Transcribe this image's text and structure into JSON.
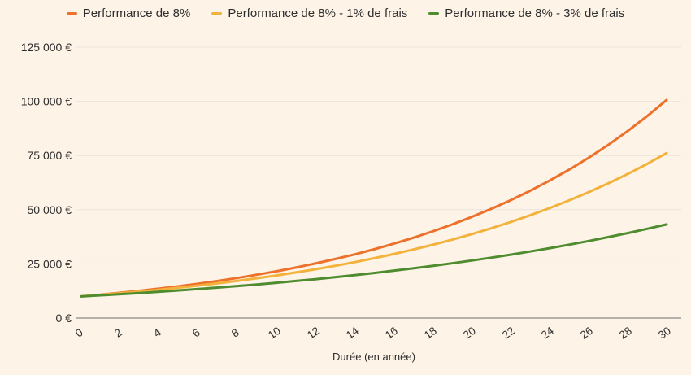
{
  "page": {
    "background": "#FDF3E6"
  },
  "colors": {
    "background": "#FDF3E6",
    "grid": "#ECE5DA",
    "axis": "#9B9B98",
    "text": "#2E2E2E"
  },
  "chart_data": {
    "type": "line",
    "title": "",
    "xlabel": "Durée (en année)",
    "ylabel": "",
    "xlim": [
      0,
      30
    ],
    "ylim": [
      0,
      125000
    ],
    "grid": "horizontal",
    "legend_position": "top",
    "x": [
      0,
      1,
      2,
      3,
      4,
      5,
      6,
      7,
      8,
      9,
      10,
      11,
      12,
      13,
      14,
      15,
      16,
      17,
      18,
      19,
      20,
      21,
      22,
      23,
      24,
      25,
      26,
      27,
      28,
      29,
      30
    ],
    "x_tick_values": [
      0,
      2,
      4,
      6,
      8,
      10,
      12,
      14,
      16,
      18,
      20,
      22,
      24,
      26,
      28,
      30
    ],
    "x_tick_labels": [
      "0",
      "2",
      "4",
      "6",
      "8",
      "10",
      "12",
      "14",
      "16",
      "18",
      "20",
      "22",
      "24",
      "26",
      "28",
      "30"
    ],
    "y_tick_values": [
      0,
      25000,
      50000,
      75000,
      100000,
      125000
    ],
    "y_tick_labels": [
      "0 €",
      "25 000 €",
      "50 000 €",
      "75 000 €",
      "100 000 €",
      "125 000 €"
    ],
    "series": [
      {
        "name": "Performance de 8%",
        "color": "#ED702B",
        "values": [
          10000,
          10800,
          11664,
          12597,
          13605,
          14693,
          15869,
          17138,
          18509,
          19990,
          21589,
          23316,
          25182,
          27196,
          29372,
          31722,
          34259,
          37000,
          39960,
          43157,
          46610,
          50338,
          54365,
          58715,
          63412,
          68485,
          73964,
          79881,
          86271,
          93173,
          100627
        ]
      },
      {
        "name": "Performance de 8% - 1% de frais",
        "color": "#F2B23C",
        "values": [
          10000,
          10700,
          11449,
          12250,
          13108,
          14026,
          15007,
          16058,
          17182,
          18385,
          19672,
          21049,
          22522,
          24098,
          25785,
          27590,
          29522,
          31588,
          33799,
          36165,
          38697,
          41406,
          44304,
          47405,
          50724,
          54274,
          58074,
          62139,
          66488,
          71143,
          76123
        ]
      },
      {
        "name": "Performance de 8% - 3% de frais",
        "color": "#4E8C2F",
        "values": [
          10000,
          10500,
          11025,
          11576,
          12155,
          12763,
          13401,
          14071,
          14775,
          15513,
          16289,
          17103,
          17959,
          18856,
          19799,
          20789,
          21829,
          22920,
          24066,
          25270,
          26533,
          27860,
          29253,
          30715,
          32251,
          33864,
          35557,
          37335,
          39201,
          41161,
          43219
        ]
      }
    ]
  }
}
